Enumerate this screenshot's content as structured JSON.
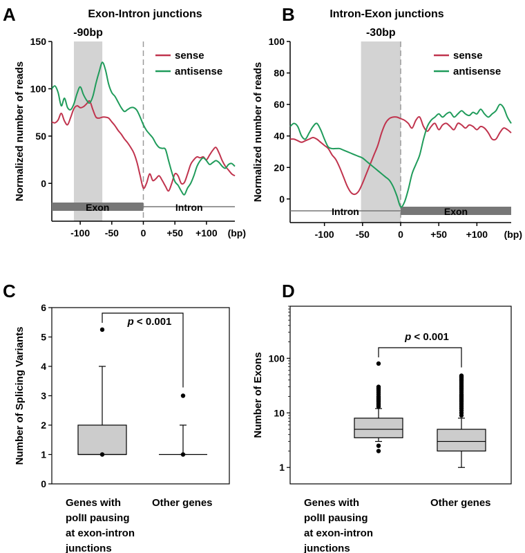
{
  "chart_data": [
    {
      "panel": "A",
      "type": "line",
      "title": "Exon-Intron junctions",
      "shade_label": "-90bp",
      "shade_range": [
        -110,
        -65
      ],
      "ylabel": "Normalized number of reads",
      "ylim": [
        -40,
        150
      ],
      "yticks": [
        0,
        50,
        100,
        150
      ],
      "xlim": [
        -145,
        145
      ],
      "xticks": [
        -100,
        -50,
        0,
        50,
        100
      ],
      "xtick_labels": [
        "-100",
        "-50",
        "0",
        "+50",
        "+100"
      ],
      "xunit": "(bp)",
      "junction_x": 0,
      "bars": [
        {
          "label": "Exon",
          "side": "left",
          "style": "thick"
        },
        {
          "label": "Intron",
          "side": "right",
          "style": "thin"
        }
      ],
      "legend": {
        "position": "top-right"
      },
      "series": [
        {
          "name": "sense",
          "color": "#c0334d",
          "x": [
            -145,
            -140,
            -135,
            -130,
            -125,
            -120,
            -115,
            -110,
            -105,
            -100,
            -95,
            -90,
            -85,
            -80,
            -75,
            -70,
            -65,
            -60,
            -55,
            -50,
            -45,
            -40,
            -35,
            -30,
            -25,
            -20,
            -15,
            -10,
            -5,
            0,
            5,
            10,
            15,
            20,
            25,
            30,
            35,
            40,
            45,
            50,
            55,
            60,
            65,
            70,
            75,
            80,
            85,
            90,
            95,
            100,
            105,
            110,
            115,
            120,
            125,
            130,
            135,
            140,
            145
          ],
          "y": [
            65,
            64,
            67,
            74,
            66,
            62,
            70,
            79,
            82,
            80,
            81,
            84,
            87,
            78,
            70,
            69,
            70,
            70,
            69,
            65,
            61,
            56,
            52,
            47,
            43,
            38,
            32,
            22,
            8,
            -5,
            0,
            10,
            3,
            5,
            8,
            3,
            -3,
            -8,
            0,
            10,
            8,
            0,
            1,
            10,
            20,
            25,
            28,
            27,
            28,
            25,
            30,
            35,
            38,
            32,
            24,
            18,
            14,
            10,
            8
          ]
        },
        {
          "name": "antisense",
          "color": "#1f9b5a",
          "x": [
            -145,
            -140,
            -135,
            -130,
            -125,
            -120,
            -115,
            -110,
            -105,
            -100,
            -95,
            -90,
            -85,
            -80,
            -75,
            -70,
            -65,
            -60,
            -55,
            -50,
            -45,
            -40,
            -35,
            -30,
            -25,
            -20,
            -15,
            -10,
            -5,
            0,
            5,
            10,
            15,
            20,
            25,
            30,
            35,
            40,
            45,
            50,
            55,
            60,
            65,
            70,
            75,
            80,
            85,
            90,
            95,
            100,
            105,
            110,
            115,
            120,
            125,
            130,
            135,
            140,
            145
          ],
          "y": [
            100,
            103,
            96,
            82,
            90,
            80,
            78,
            84,
            95,
            102,
            94,
            88,
            85,
            92,
            106,
            118,
            128,
            120,
            105,
            96,
            92,
            86,
            80,
            76,
            78,
            80,
            80,
            77,
            70,
            62,
            56,
            52,
            48,
            42,
            38,
            37,
            36,
            24,
            12,
            2,
            -2,
            -8,
            -12,
            -5,
            0,
            8,
            18,
            24,
            27,
            24,
            20,
            22,
            24,
            22,
            18,
            16,
            20,
            21,
            18
          ]
        }
      ]
    },
    {
      "panel": "B",
      "type": "line",
      "title": "Intron-Exon junctions",
      "shade_label": "-30bp",
      "shade_range": [
        -52,
        0
      ],
      "ylabel": "Normalized number of reads",
      "ylim": [
        -15,
        100
      ],
      "yticks": [
        0,
        20,
        40,
        60,
        80,
        100
      ],
      "xlim": [
        -145,
        145
      ],
      "xticks": [
        -100,
        -50,
        0,
        50,
        100
      ],
      "xtick_labels": [
        "-100",
        "-50",
        "0",
        "+50",
        "+100"
      ],
      "xunit": "(bp)",
      "junction_x": 0,
      "bars": [
        {
          "label": "Intron",
          "side": "left",
          "style": "thin"
        },
        {
          "label": "Exon",
          "side": "right",
          "style": "thick"
        }
      ],
      "legend": {
        "position": "top-right"
      },
      "series": [
        {
          "name": "sense",
          "color": "#c0334d",
          "x": [
            -145,
            -140,
            -135,
            -130,
            -125,
            -120,
            -115,
            -110,
            -105,
            -100,
            -95,
            -90,
            -85,
            -80,
            -75,
            -70,
            -65,
            -60,
            -55,
            -50,
            -45,
            -40,
            -35,
            -30,
            -25,
            -20,
            -15,
            -10,
            -5,
            0,
            5,
            10,
            15,
            20,
            25,
            30,
            35,
            40,
            45,
            50,
            55,
            60,
            65,
            70,
            75,
            80,
            85,
            90,
            95,
            100,
            105,
            110,
            115,
            120,
            125,
            130,
            135,
            140,
            145
          ],
          "y": [
            38,
            38,
            37,
            36,
            37,
            38,
            39,
            38,
            36,
            34,
            32,
            28,
            25,
            20,
            14,
            8,
            4,
            3,
            5,
            10,
            16,
            22,
            28,
            34,
            42,
            48,
            51,
            52,
            52,
            51,
            50,
            48,
            45,
            50,
            52,
            46,
            43,
            46,
            48,
            44,
            47,
            48,
            46,
            44,
            48,
            47,
            45,
            47,
            46,
            44,
            46,
            45,
            42,
            38,
            38,
            42,
            45,
            44,
            42
          ]
        },
        {
          "name": "antisense",
          "color": "#1f9b5a",
          "x": [
            -145,
            -140,
            -135,
            -130,
            -125,
            -120,
            -115,
            -110,
            -105,
            -100,
            -95,
            -90,
            -85,
            -80,
            -75,
            -70,
            -65,
            -60,
            -55,
            -50,
            -45,
            -40,
            -35,
            -30,
            -25,
            -20,
            -15,
            -10,
            -5,
            0,
            5,
            10,
            15,
            20,
            25,
            30,
            35,
            40,
            45,
            50,
            55,
            60,
            65,
            70,
            75,
            80,
            85,
            90,
            95,
            100,
            105,
            110,
            115,
            120,
            125,
            130,
            135,
            140,
            145
          ],
          "y": [
            46,
            48,
            46,
            40,
            38,
            42,
            46,
            48,
            44,
            38,
            33,
            32,
            32,
            32,
            31,
            30,
            29,
            28,
            27,
            26,
            24,
            22,
            20,
            18,
            16,
            14,
            12,
            8,
            2,
            -5,
            -2,
            6,
            16,
            22,
            28,
            38,
            46,
            50,
            52,
            54,
            52,
            54,
            55,
            52,
            54,
            56,
            54,
            53,
            55,
            54,
            57,
            54,
            52,
            54,
            56,
            60,
            58,
            52,
            48
          ]
        }
      ]
    },
    {
      "panel": "C",
      "type": "box",
      "ylabel": "Number of Splicing Variants",
      "ylim": [
        0,
        6
      ],
      "yticks": [
        0,
        1,
        2,
        3,
        4,
        5,
        6
      ],
      "categories": [
        "Genes with polII pausing at exon-intron junctions",
        "Other genes"
      ],
      "category_lines": [
        [
          "Genes with",
          "polII pausing",
          "at exon-intron",
          "junctions"
        ],
        [
          "Other genes"
        ]
      ],
      "boxes": [
        {
          "whisker_low": 1,
          "q1": 1,
          "median": 1,
          "q3": 2,
          "whisker_high": 4,
          "outliers": [
            1,
            5.25
          ],
          "filled": true
        },
        {
          "whisker_low": 1,
          "q1": 1,
          "median": 1,
          "q3": 1,
          "whisker_high": 2,
          "outliers": [
            1,
            3
          ],
          "filled": false
        }
      ],
      "significance": {
        "prefix": "p",
        "text": " < 0.001"
      }
    },
    {
      "panel": "D",
      "type": "box",
      "yscale": "log",
      "ylabel": "Number of Exons",
      "ylim": [
        0.5,
        900
      ],
      "yticks": [
        1,
        10,
        100
      ],
      "categories": [
        "Genes with polII pausing at exon-intron junctions",
        "Other genes"
      ],
      "category_lines": [
        [
          "Genes with",
          "polII pausing",
          "at exon-intron",
          "junctions"
        ],
        [
          "Other genes"
        ]
      ],
      "boxes": [
        {
          "whisker_low": 3,
          "q1": 3.5,
          "median": 5,
          "q3": 8,
          "whisker_high": 12,
          "outliers": [
            2,
            2.5,
            13,
            14,
            15,
            16,
            17,
            18,
            19,
            20,
            22,
            24,
            26,
            28,
            30,
            80
          ],
          "filled": true
        },
        {
          "whisker_low": 1,
          "q1": 2,
          "median": 3,
          "q3": 5,
          "whisker_high": 8,
          "outliers": [
            9,
            10,
            11,
            12,
            13,
            14,
            15,
            16,
            17,
            18,
            19,
            20,
            21,
            22,
            24,
            26,
            28,
            30,
            32,
            34,
            36,
            38,
            40,
            42,
            44,
            46,
            48
          ],
          "filled": true
        }
      ],
      "significance": {
        "prefix": "p",
        "text": " < 0.001"
      }
    }
  ],
  "colors": {
    "sense": "#c0334d",
    "antisense": "#1f9b5a",
    "shade": "#d3d3d3",
    "box_fill": "#cccccc",
    "exon_bar": "#777777"
  }
}
